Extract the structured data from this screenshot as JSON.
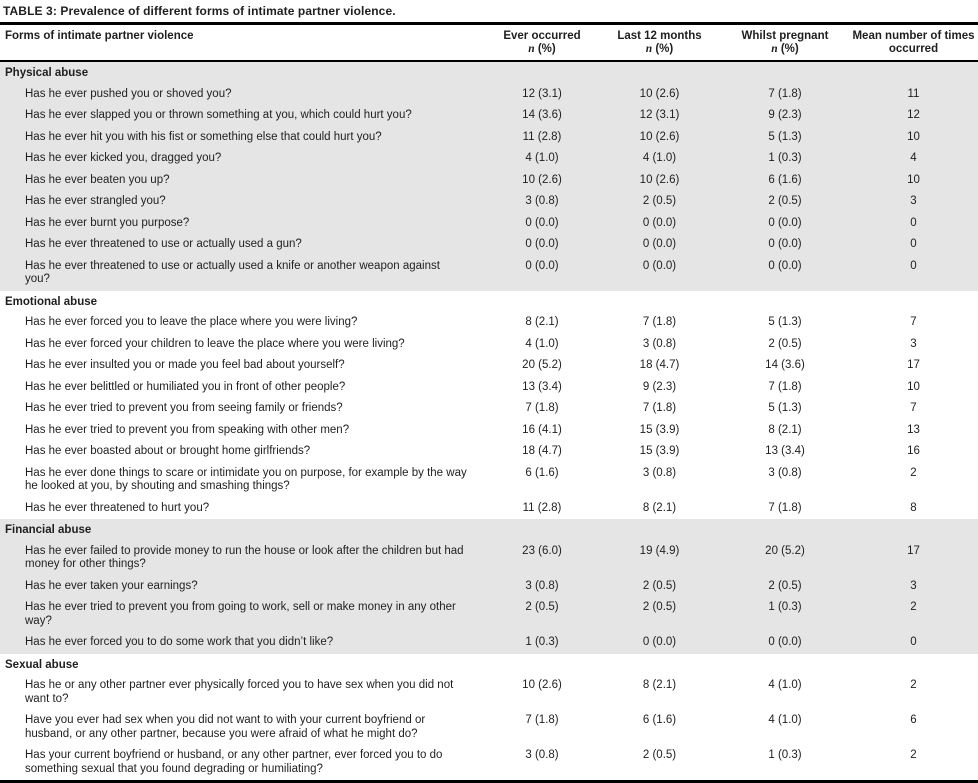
{
  "colors": {
    "stripe": "#e5e5e6",
    "border": "#000000",
    "text": "#1f1f1f"
  },
  "table": {
    "title": "TABLE 3: Prevalence of different forms of intimate partner violence.",
    "columns": [
      {
        "label": "Forms of intimate partner violence",
        "sub": ""
      },
      {
        "label": "Ever occurred",
        "sub": "n (%)"
      },
      {
        "label": "Last 12 months",
        "sub": "n (%)"
      },
      {
        "label": "Whilst pregnant",
        "sub": "n (%)"
      },
      {
        "label": "Mean number of times occurred",
        "sub": ""
      }
    ],
    "sections": [
      {
        "name": "Physical abuse",
        "shaded": true,
        "rows": [
          {
            "question": "Has he ever pushed you or shoved you?",
            "ever": "12 (3.1)",
            "last12": "10 (2.6)",
            "pregnant": "7 (1.8)",
            "mean": "11"
          },
          {
            "question": "Has he ever slapped you or thrown something at you, which could hurt you?",
            "ever": "14 (3.6)",
            "last12": "12 (3.1)",
            "pregnant": "9 (2.3)",
            "mean": "12"
          },
          {
            "question": "Has he ever hit you with his fist or something else that could hurt you?",
            "ever": "11 (2.8)",
            "last12": "10 (2.6)",
            "pregnant": "5 (1.3)",
            "mean": "10"
          },
          {
            "question": "Has he ever kicked you, dragged you?",
            "ever": "4 (1.0)",
            "last12": "4 (1.0)",
            "pregnant": "1 (0.3)",
            "mean": "4"
          },
          {
            "question": "Has he ever beaten you up?",
            "ever": "10 (2.6)",
            "last12": "10 (2.6)",
            "pregnant": "6 (1.6)",
            "mean": "10"
          },
          {
            "question": "Has he ever strangled you?",
            "ever": "3 (0.8)",
            "last12": "2 (0.5)",
            "pregnant": "2 (0.5)",
            "mean": "3"
          },
          {
            "question": "Has he ever burnt you purpose?",
            "ever": "0 (0.0)",
            "last12": "0 (0.0)",
            "pregnant": "0 (0.0)",
            "mean": "0"
          },
          {
            "question": "Has he ever threatened to use or actually used a gun?",
            "ever": "0 (0.0)",
            "last12": "0 (0.0)",
            "pregnant": "0 (0.0)",
            "mean": "0"
          },
          {
            "question": "Has he ever threatened to use or actually used a knife or another weapon against you?",
            "ever": "0 (0.0)",
            "last12": "0 (0.0)",
            "pregnant": "0 (0.0)",
            "mean": "0"
          }
        ]
      },
      {
        "name": "Emotional abuse",
        "shaded": false,
        "rows": [
          {
            "question": "Has he ever forced you to leave the place where you were living?",
            "ever": "8 (2.1)",
            "last12": "7 (1.8)",
            "pregnant": "5 (1.3)",
            "mean": "7"
          },
          {
            "question": "Has he ever forced your children to leave the place where you were living?",
            "ever": "4 (1.0)",
            "last12": "3 (0.8)",
            "pregnant": "2 (0.5)",
            "mean": "3"
          },
          {
            "question": "Has he ever insulted you or made you feel bad about yourself?",
            "ever": "20 (5.2)",
            "last12": "18 (4.7)",
            "pregnant": "14 (3.6)",
            "mean": "17"
          },
          {
            "question": "Has he ever belittled or humiliated you in front of other people?",
            "ever": "13 (3.4)",
            "last12": "9 (2.3)",
            "pregnant": "7 (1.8)",
            "mean": "10"
          },
          {
            "question": "Has he ever tried to prevent you from seeing family or friends?",
            "ever": "7 (1.8)",
            "last12": "7 (1.8)",
            "pregnant": "5 (1.3)",
            "mean": "7"
          },
          {
            "question": "Has he ever tried to prevent you from speaking with other men?",
            "ever": "16 (4.1)",
            "last12": "15 (3.9)",
            "pregnant": "8 (2.1)",
            "mean": "13"
          },
          {
            "question": "Has he ever boasted about or brought home girlfriends?",
            "ever": "18 (4.7)",
            "last12": "15 (3.9)",
            "pregnant": "13 (3.4)",
            "mean": "16"
          },
          {
            "question": "Has he ever done things to scare or intimidate you on purpose, for example by the way he looked at you, by shouting and smashing things?",
            "ever": "6 (1.6)",
            "last12": "3 (0.8)",
            "pregnant": "3 (0.8)",
            "mean": "2"
          },
          {
            "question": "Has he ever threatened to hurt you?",
            "ever": "11 (2.8)",
            "last12": "8 (2.1)",
            "pregnant": "7 (1.8)",
            "mean": "8"
          }
        ]
      },
      {
        "name": "Financial abuse",
        "shaded": true,
        "rows": [
          {
            "question": "Has he ever failed to provide money to run the house or look after the children but had money for other things?",
            "ever": "23 (6.0)",
            "last12": "19 (4.9)",
            "pregnant": "20 (5.2)",
            "mean": "17"
          },
          {
            "question": "Has he ever taken your earnings?",
            "ever": "3 (0.8)",
            "last12": "2 (0.5)",
            "pregnant": "2 (0.5)",
            "mean": "3"
          },
          {
            "question": "Has he ever tried to prevent you from going to work, sell or make money in any other way?",
            "ever": "2 (0.5)",
            "last12": "2 (0.5)",
            "pregnant": "1 (0.3)",
            "mean": "2"
          },
          {
            "question": "Has he ever forced you to do some work that you didn’t like?",
            "ever": "1 (0.3)",
            "last12": "0 (0.0)",
            "pregnant": "0 (0.0)",
            "mean": "0"
          }
        ]
      },
      {
        "name": "Sexual abuse",
        "shaded": false,
        "rows": [
          {
            "question": "Has he or any other partner ever physically forced you to have sex when you did not want to?",
            "ever": "10 (2.6)",
            "last12": "8 (2.1)",
            "pregnant": "4 (1.0)",
            "mean": "2"
          },
          {
            "question": "Have you ever had sex when you did not want to with your current boyfriend or husband, or any other partner, because you were afraid of what he might do?",
            "ever": "7 (1.8)",
            "last12": "6 (1.6)",
            "pregnant": "4 (1.0)",
            "mean": "6"
          },
          {
            "question": "Has your current boyfriend or husband, or any other partner, ever forced you to do something sexual that you found degrading or humiliating?",
            "ever": "3 (0.8)",
            "last12": "2 (0.5)",
            "pregnant": "1 (0.3)",
            "mean": "2"
          }
        ]
      }
    ]
  }
}
